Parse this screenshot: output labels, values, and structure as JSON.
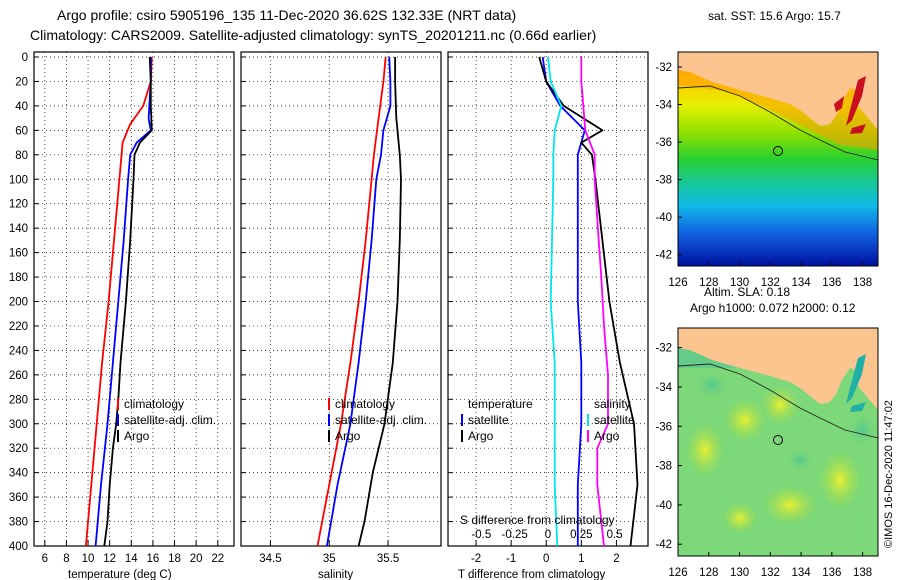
{
  "header": {
    "title1": "Argo profile: csiro 5905196_135 11-Dec-2020 36.62S 132.33E (NRT data)",
    "title2": "Climatology: CARS2009. Satellite-adjusted climatology: synTS_20201211.nc (0.66d earlier)"
  },
  "colors": {
    "climatology": "#ff0000",
    "satellite": "#0000ff",
    "argo": "#000000",
    "cyan": "#00e5ee",
    "magenta": "#ff00ff",
    "land": "#fcc590"
  },
  "chart_data": [
    {
      "type": "line",
      "id": "temperature",
      "xlabel": "temperature (deg C)",
      "ylabel": "",
      "xlim": [
        5,
        23.5
      ],
      "ylim": [
        400,
        0
      ],
      "xticks": [
        "6",
        "8",
        "10",
        "12",
        "14",
        "16",
        "18",
        "20",
        "22"
      ],
      "yticks": [
        "0",
        "20",
        "40",
        "60",
        "80",
        "100",
        "120",
        "140",
        "160",
        "180",
        "200",
        "220",
        "240",
        "260",
        "280",
        "300",
        "320",
        "340",
        "360",
        "380",
        "400"
      ],
      "legend": [
        "climatology",
        "satellite-adj. clim.",
        "Argo"
      ],
      "series": [
        {
          "name": "climatology",
          "depth": [
            0,
            20,
            40,
            55,
            70,
            100,
            150,
            200,
            250,
            300,
            350,
            400
          ],
          "values": [
            15.9,
            15.8,
            15.1,
            13.9,
            13.2,
            12.9,
            12.4,
            11.9,
            11.3,
            10.8,
            10.3,
            9.8
          ]
        },
        {
          "name": "satellite-adj. clim.",
          "depth": [
            0,
            20,
            50,
            60,
            70,
            80,
            100,
            150,
            200,
            250,
            300,
            350,
            400
          ],
          "values": [
            15.8,
            15.8,
            15.6,
            15.8,
            14.5,
            13.9,
            13.7,
            13.3,
            12.8,
            12.3,
            11.8,
            11.2,
            10.7
          ]
        },
        {
          "name": "Argo",
          "depth": [
            0,
            20,
            40,
            60,
            70,
            80,
            100,
            150,
            200,
            250,
            280,
            300,
            320,
            350,
            380,
            400
          ],
          "values": [
            15.7,
            15.8,
            15.8,
            15.9,
            14.8,
            14.3,
            14.2,
            13.9,
            13.5,
            13.0,
            12.8,
            12.6,
            12.3,
            12.0,
            11.8,
            11.5
          ]
        }
      ]
    },
    {
      "type": "line",
      "id": "salinity",
      "xlabel": "salinity",
      "ylabel": "",
      "xlim": [
        34.25,
        35.95
      ],
      "ylim": [
        400,
        0
      ],
      "xticks": [
        "34.5",
        "35",
        "35.5"
      ],
      "legend": [
        "climatology",
        "satellite-adj. clim.",
        "Argo"
      ],
      "series": [
        {
          "name": "climatology",
          "depth": [
            0,
            20,
            50,
            80,
            100,
            150,
            200,
            250,
            300,
            350,
            400
          ],
          "values": [
            35.48,
            35.46,
            35.42,
            35.38,
            35.36,
            35.31,
            35.25,
            35.18,
            35.1,
            35.0,
            34.9
          ]
        },
        {
          "name": "satellite-adj. clim.",
          "depth": [
            0,
            20,
            40,
            60,
            80,
            100,
            150,
            200,
            250,
            300,
            350,
            400
          ],
          "values": [
            35.51,
            35.52,
            35.52,
            35.46,
            35.44,
            35.4,
            35.36,
            35.31,
            35.25,
            35.18,
            35.07,
            34.98
          ]
        },
        {
          "name": "Argo",
          "depth": [
            0,
            20,
            50,
            80,
            100,
            150,
            200,
            250,
            300,
            340,
            380,
            400
          ],
          "values": [
            35.56,
            35.56,
            35.57,
            35.6,
            35.61,
            35.6,
            35.58,
            35.54,
            35.47,
            35.37,
            35.3,
            35.25
          ]
        }
      ]
    },
    {
      "type": "line",
      "id": "differences",
      "xlabel": "T difference from climatology",
      "secondary_xlabel": "S difference from climatology",
      "xlim": [
        -2.8,
        2.9
      ],
      "ylim": [
        400,
        0
      ],
      "xticks": [
        "-2",
        "-1",
        "0",
        "1",
        "2"
      ],
      "secondary_xticks": [
        "-0.5",
        "-0.25",
        "0",
        "0.25",
        "0.5"
      ],
      "legend_left_title": "temperature",
      "legend_right_title": "salinity",
      "legend_left": [
        "satellite",
        "Argo"
      ],
      "legend_right": [
        "satellite",
        "Argo"
      ],
      "series": [
        {
          "name": "temperature satellite",
          "depth": [
            0,
            20,
            40,
            60,
            80,
            100,
            150,
            200,
            250,
            300,
            350,
            400
          ],
          "values": [
            -0.1,
            0.0,
            0.4,
            1.1,
            0.9,
            0.9,
            0.9,
            0.9,
            1.0,
            1.0,
            0.9,
            0.9
          ]
        },
        {
          "name": "temperature Argo",
          "depth": [
            0,
            20,
            40,
            60,
            70,
            80,
            100,
            150,
            200,
            250,
            300,
            350,
            400
          ],
          "values": [
            -0.2,
            0.0,
            0.5,
            1.6,
            1.0,
            1.3,
            1.4,
            1.6,
            1.8,
            2.1,
            2.5,
            2.6,
            2.4
          ]
        },
        {
          "name": "salinity satellite",
          "depth": [
            0,
            20,
            40,
            60,
            80,
            100,
            150,
            200,
            250,
            300,
            350,
            400
          ],
          "values": [
            0.0,
            0.02,
            0.1,
            0.05,
            0.04,
            0.04,
            0.03,
            0.02,
            0.05,
            0.05,
            0.05,
            0.07
          ]
        },
        {
          "name": "salinity Argo",
          "depth": [
            0,
            20,
            60,
            80,
            100,
            150,
            180,
            220,
            260,
            300,
            320,
            350,
            380,
            400
          ],
          "values": [
            0.25,
            0.25,
            0.28,
            0.35,
            0.35,
            0.38,
            0.4,
            0.42,
            0.45,
            0.45,
            0.37,
            0.37,
            0.4,
            0.42
          ]
        }
      ]
    }
  ],
  "maps": [
    {
      "title": "sat. SST: 15.6 Argo: 15.7",
      "subtitle": "",
      "xticks": [
        "126",
        "128",
        "130",
        "132",
        "134",
        "136",
        "138"
      ],
      "yticks": [
        "-32",
        "-34",
        "-36",
        "-38",
        "-40",
        "-42"
      ]
    },
    {
      "title": "Altim. SLA: 0.18",
      "subtitle": "Argo h1000: 0.072 h2000: 0.12",
      "xticks": [
        "126",
        "128",
        "130",
        "132",
        "134",
        "136",
        "138"
      ],
      "yticks": [
        "-32",
        "-34",
        "-36",
        "-38",
        "-40",
        "-42"
      ]
    }
  ],
  "watermark": "©IMOS 16-Dec-2020 11:47:02"
}
